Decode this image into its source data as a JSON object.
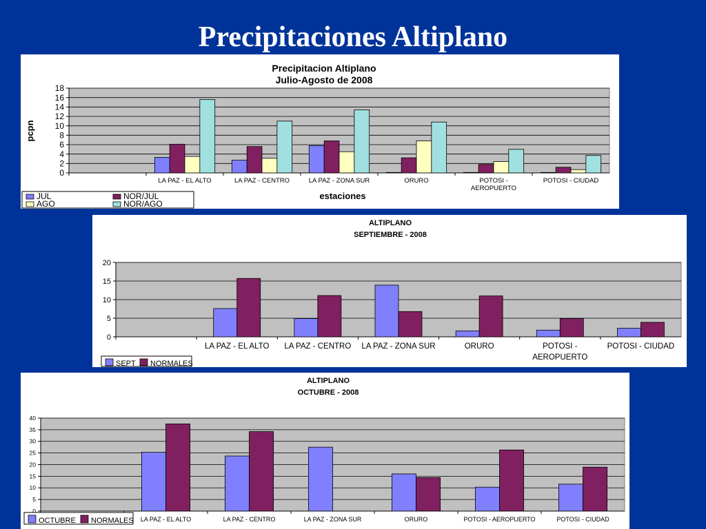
{
  "slide": {
    "title": "Precipitaciones Altiplano"
  },
  "chart_data": [
    {
      "type": "bar",
      "title": "Precipitacion Altiplano",
      "subtitle": "Julio-Agosto de 2008",
      "xlabel": "estaciones",
      "ylabel": "pcpn",
      "ylim": [
        0,
        18
      ],
      "yticks": [
        0,
        2,
        4,
        6,
        8,
        10,
        12,
        14,
        16,
        18
      ],
      "categories": [
        "",
        "LA PAZ - EL ALTO",
        "LA PAZ - CENTRO",
        "LA PAZ - ZONA SUR",
        "ORURO",
        "POTOSI - AEROPUERTO",
        "POTOSI - CIUDAD"
      ],
      "category_lines": [
        [
          ""
        ],
        [
          "LA PAZ - EL ALTO"
        ],
        [
          "LA PAZ - CENTRO"
        ],
        [
          "LA PAZ - ZONA SUR"
        ],
        [
          "ORURO"
        ],
        [
          "POTOSI -",
          "AEROPUERTO"
        ],
        [
          "POTOSI - CIUDAD"
        ]
      ],
      "series": [
        {
          "name": "JUL",
          "color": "#8080ff",
          "values": [
            0,
            3.3,
            2.7,
            5.8,
            0.1,
            0.1,
            0.1
          ]
        },
        {
          "name": "NOR/JUL",
          "color": "#802060",
          "values": [
            0,
            6.1,
            5.6,
            6.8,
            3.2,
            1.8,
            1.2
          ]
        },
        {
          "name": "AGO",
          "color": "#ffffc0",
          "values": [
            0,
            3.5,
            3.1,
            4.5,
            6.8,
            2.4,
            0.7
          ]
        },
        {
          "name": "NOR/AGO",
          "color": "#a0e0e0",
          "values": [
            0,
            15.6,
            11.0,
            13.4,
            10.8,
            5.0,
            3.7
          ]
        }
      ],
      "grid": true,
      "legend_position": "bottom-left"
    },
    {
      "type": "bar",
      "title": "ALTIPLANO",
      "subtitle": "SEPTIEMBRE - 2008",
      "ylim": [
        0,
        20
      ],
      "yticks": [
        0,
        5,
        10,
        15,
        20
      ],
      "categories": [
        "",
        "LA PAZ - EL ALTO",
        "LA PAZ - CENTRO",
        "LA PAZ - ZONA SUR",
        "ORURO",
        "POTOSI - AEROPUERTO",
        "POTOSI - CIUDAD"
      ],
      "category_lines": [
        [
          ""
        ],
        [
          "LA PAZ - EL ALTO"
        ],
        [
          "LA PAZ - CENTRO"
        ],
        [
          "LA PAZ - ZONA SUR"
        ],
        [
          "ORURO"
        ],
        [
          "POTOSI -",
          "AEROPUERTO"
        ],
        [
          "POTOSI - CIUDAD"
        ]
      ],
      "series": [
        {
          "name": "SEPT",
          "color": "#8080ff",
          "values": [
            0,
            7.6,
            4.9,
            13.9,
            1.6,
            1.8,
            2.3
          ]
        },
        {
          "name": "NORMALES",
          "color": "#802060",
          "values": [
            0,
            15.7,
            11.1,
            6.8,
            11.0,
            4.9,
            3.9
          ]
        }
      ],
      "grid": true,
      "legend_position": "bottom-left"
    },
    {
      "type": "bar",
      "title": "ALTIPLANO",
      "subtitle": "OCTUBRE - 2008",
      "ylim": [
        0,
        40
      ],
      "yticks": [
        0,
        5,
        10,
        15,
        20,
        25,
        30,
        35,
        40
      ],
      "categories": [
        "",
        "LA PAZ - EL ALTO",
        "LA PAZ - CENTRO",
        "LA PAZ - ZONA SUR",
        "ORURO",
        "POTOSI - AEROPUERTO",
        "POTOSI - CIUDAD"
      ],
      "category_lines": [
        [
          ""
        ],
        [
          "LA PAZ - EL ALTO"
        ],
        [
          "LA PAZ - CENTRO"
        ],
        [
          "LA PAZ - ZONA SUR"
        ],
        [
          "ORURO"
        ],
        [
          "POTOSI - AEROPUERTO"
        ],
        [
          "POTOSI - CIUDAD"
        ]
      ],
      "series": [
        {
          "name": "OCTUBRE",
          "color": "#8080ff",
          "values": [
            0,
            25.3,
            23.7,
            27.5,
            16.0,
            10.3,
            11.6
          ]
        },
        {
          "name": "NORMALES",
          "color": "#802060",
          "values": [
            0,
            37.5,
            34.2,
            0,
            14.4,
            26.3,
            18.9
          ]
        }
      ],
      "grid": true,
      "legend_position": "bottom-left"
    }
  ]
}
